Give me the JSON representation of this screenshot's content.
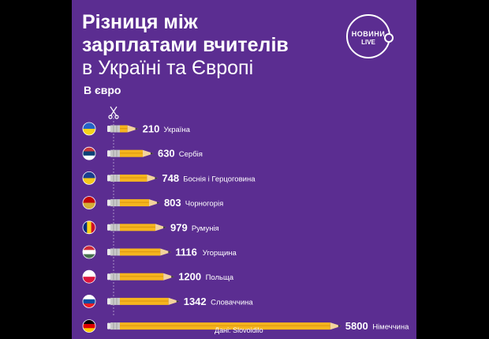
{
  "title_line1": "Різниця між",
  "title_line2": "зарплатами вчителів",
  "title_line3": "в Україні та Європі",
  "subtitle": "В євро",
  "logo": {
    "line1": "НОВИНИ",
    "line2": "LIVE"
  },
  "source": "Дані: Slovoidilo",
  "colors": {
    "background": "#5b2d91",
    "pencil_body": "#f6b51e",
    "pencil_wood": "#f3d39c",
    "pencil_metal": "#c9c9c9",
    "text": "#ffffff"
  },
  "chart_data": {
    "type": "bar",
    "categories": [
      "Україна",
      "Сербія",
      "Боснія і Герцоговина",
      "Чорногорія",
      "Румунія",
      "Угорщина",
      "Польща",
      "Словаччина",
      "Німеччина"
    ],
    "values": [
      210,
      630,
      748,
      803,
      979,
      1116,
      1200,
      1342,
      5800
    ],
    "value_labels": [
      "210",
      "630",
      "748",
      "803",
      "979",
      "1116",
      "1200",
      "1342",
      "5800"
    ],
    "flags": [
      [
        "#2563c7",
        "#f6d31a"
      ],
      [
        "#c6363c",
        "#0c4076",
        "#ffffff"
      ],
      [
        "#1a3e8f",
        "#f6c81a"
      ],
      [
        "#c40308",
        "#d4af37"
      ],
      [
        "#002b7f",
        "#fcd116",
        "#ce1126"
      ],
      [
        "#ce2939",
        "#ffffff",
        "#477050"
      ],
      [
        "#ffffff",
        "#dc143c"
      ],
      [
        "#ffffff",
        "#0b4ea2",
        "#ee1c25"
      ],
      [
        "#000000",
        "#dd0000",
        "#ffce00"
      ]
    ],
    "flag_orientation": [
      "h",
      "h",
      "h",
      "h",
      "v",
      "h",
      "h",
      "h",
      "h"
    ],
    "unit": "євро",
    "xlabel": "",
    "ylabel": ""
  }
}
